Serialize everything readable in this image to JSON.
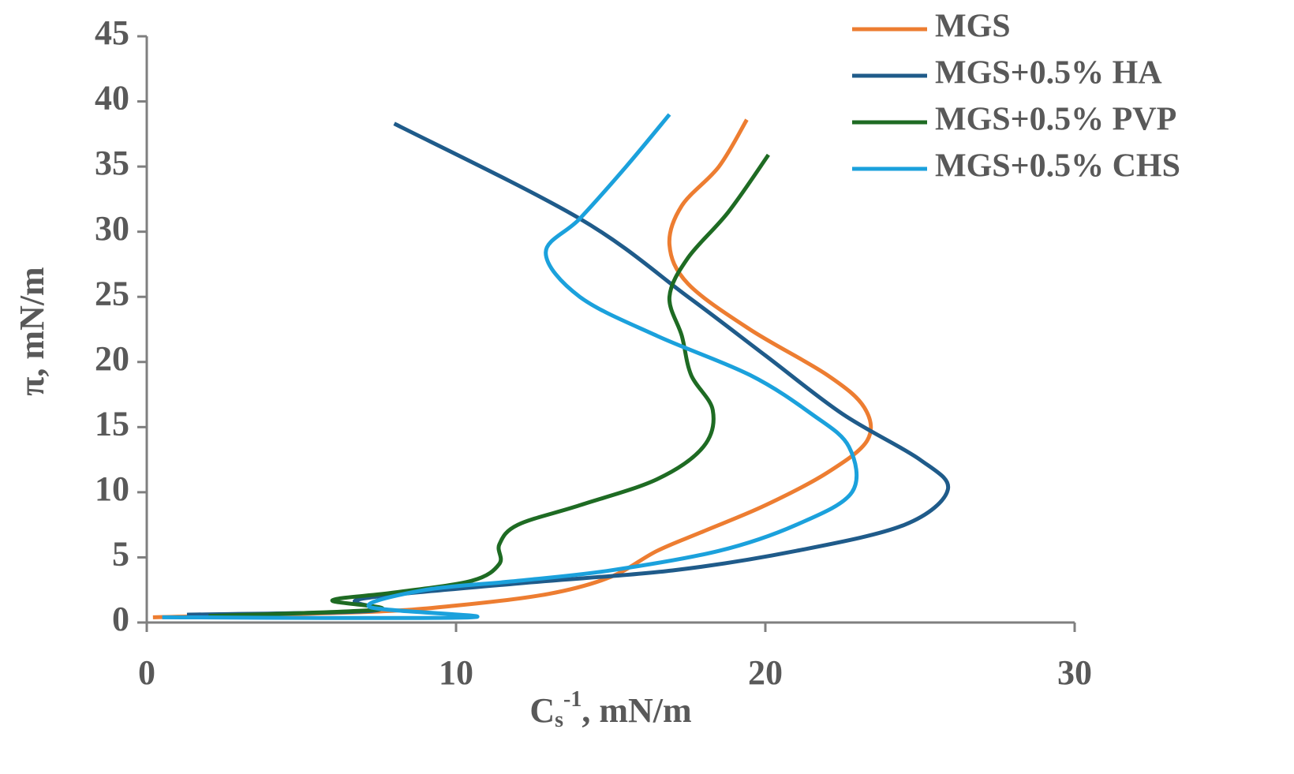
{
  "chart_data": {
    "type": "line",
    "x_label": {
      "base": "C",
      "sub": "s",
      "sup": "-1",
      "rest": ", mN/m"
    },
    "y_label": "π, mN/m",
    "xlim": [
      0,
      30
    ],
    "xticks": [
      0,
      10,
      20,
      30
    ],
    "ylim": [
      0,
      45
    ],
    "yticks": [
      0,
      5,
      10,
      15,
      20,
      25,
      30,
      35,
      40,
      45
    ],
    "legend": "top-right",
    "series": [
      {
        "name": "MGS",
        "color": "#ed7d31",
        "x": [
          0.2,
          7,
          10,
          13,
          15,
          16.5,
          18,
          20,
          22,
          23.3,
          23.2,
          22,
          19.5,
          17.5,
          16.9,
          17.3,
          18.5,
          19.4
        ],
        "values": [
          0.4,
          0.8,
          1.3,
          2.2,
          3.5,
          5.5,
          7,
          9,
          11.5,
          14,
          16.5,
          19,
          22.5,
          26,
          29,
          32,
          35,
          38.6
        ]
      },
      {
        "name": "MGS+0.5% HA",
        "color": "#1f5b8a",
        "x": [
          1.3,
          7.3,
          6.9,
          12,
          17,
          21,
          24.5,
          25.9,
          25,
          22.5,
          20,
          17.5,
          14,
          8
        ],
        "values": [
          0.6,
          0.9,
          1.8,
          3,
          4,
          5.5,
          7.5,
          10.2,
          12.5,
          16,
          20.5,
          25,
          31,
          38.3
        ]
      },
      {
        "name": "MGS+0.5% PVP",
        "color": "#1e6b23",
        "x": [
          2,
          7.5,
          6,
          8,
          10.5,
          11.4,
          11.4,
          12,
          14,
          16.5,
          18,
          18.3,
          17.6,
          17.3,
          16.9,
          17.5,
          18.8,
          20.1
        ],
        "values": [
          0.5,
          1,
          1.7,
          2.3,
          3.2,
          4.5,
          6,
          7.5,
          9,
          11,
          13.5,
          16.3,
          19,
          22,
          25,
          28,
          31.5,
          35.9
        ]
      },
      {
        "name": "MGS+0.5% CHS",
        "color": "#1ba1dc",
        "x": [
          0.5,
          10.5,
          7.2,
          9,
          12,
          15,
          18.5,
          21,
          22.8,
          22.7,
          21.5,
          19.5,
          16.5,
          14,
          12.9,
          14,
          15.5,
          16.9
        ],
        "values": [
          0.4,
          0.4,
          1.2,
          2.5,
          3.2,
          4,
          5.5,
          7.5,
          10,
          13.5,
          16,
          19,
          22,
          25,
          28.4,
          31,
          35,
          39
        ]
      }
    ]
  }
}
